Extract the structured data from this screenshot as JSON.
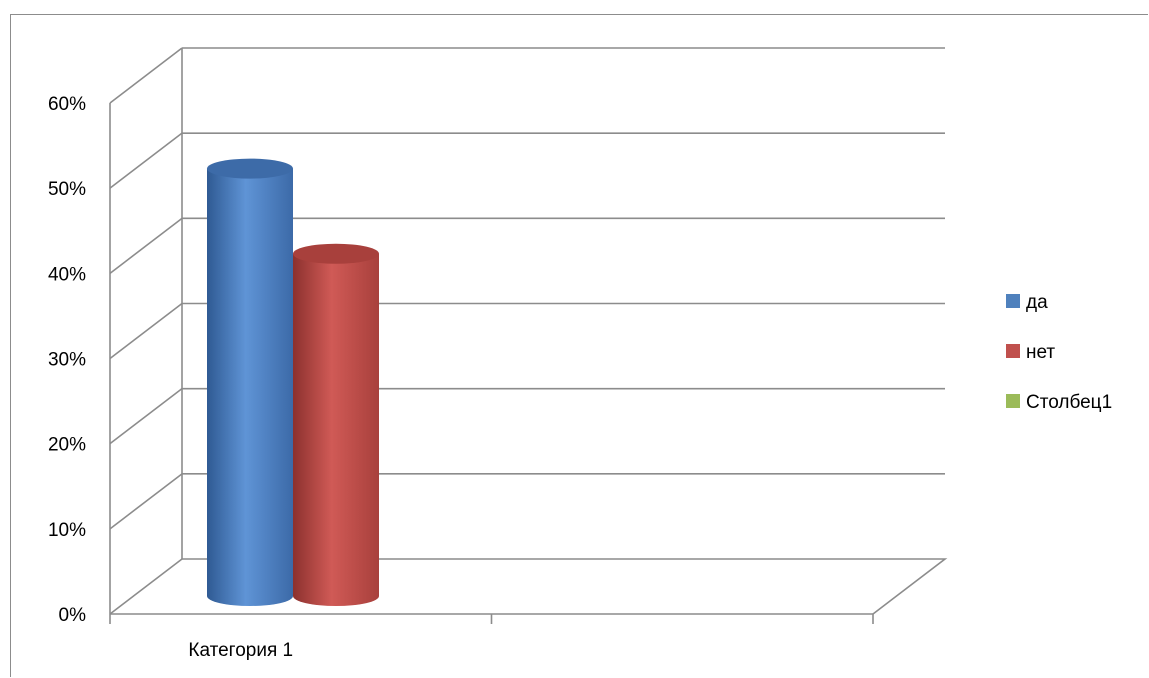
{
  "chart_data": {
    "type": "bar",
    "categories": [
      "Категория 1"
    ],
    "series": [
      {
        "name": "да",
        "values": [
          0.55
        ],
        "color": "#4F81BD"
      },
      {
        "name": "нет",
        "values": [
          0.45
        ],
        "color": "#C0504D"
      },
      {
        "name": "Столбец1",
        "values": [
          null
        ],
        "color": "#9BBB59"
      }
    ],
    "ylim": [
      0,
      0.6
    ],
    "y_ticks": [
      0,
      0.1,
      0.2,
      0.3,
      0.4,
      0.5,
      0.6
    ],
    "y_tick_labels": [
      "0%",
      "10%",
      "20%",
      "30%",
      "40%",
      "50%",
      "60%"
    ],
    "grid": true,
    "legend": "right",
    "style": "3d-cylinder"
  }
}
